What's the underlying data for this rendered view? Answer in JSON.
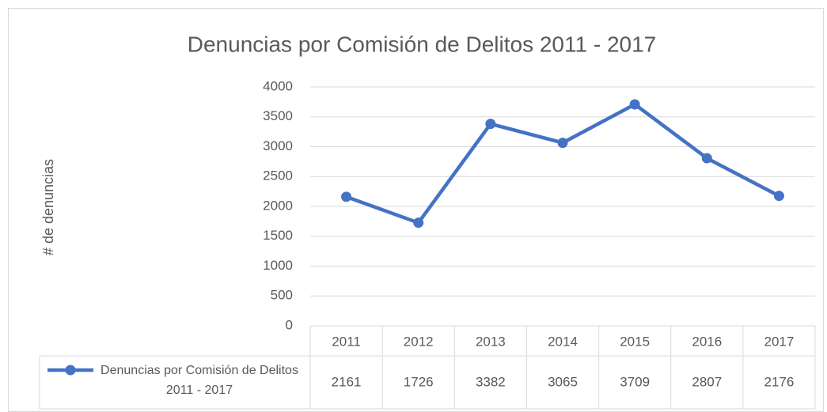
{
  "chart_data": {
    "type": "line",
    "title": "Denuncias por Comisión de Delitos 2011 - 2017",
    "y_label": "# de denuncias",
    "categories": [
      "2011",
      "2012",
      "2013",
      "2014",
      "2015",
      "2016",
      "2017"
    ],
    "series": [
      {
        "name": "Denuncias por Comisión de Delitos 2011 - 2017",
        "color": "#4472c4",
        "values": [
          2161,
          1726,
          3382,
          3065,
          3709,
          2807,
          2176
        ]
      }
    ],
    "ylim": [
      0,
      4000
    ],
    "yticks": [
      0,
      500,
      1000,
      1500,
      2000,
      2500,
      3000,
      3500,
      4000
    ],
    "grid": true,
    "data_table": true
  }
}
